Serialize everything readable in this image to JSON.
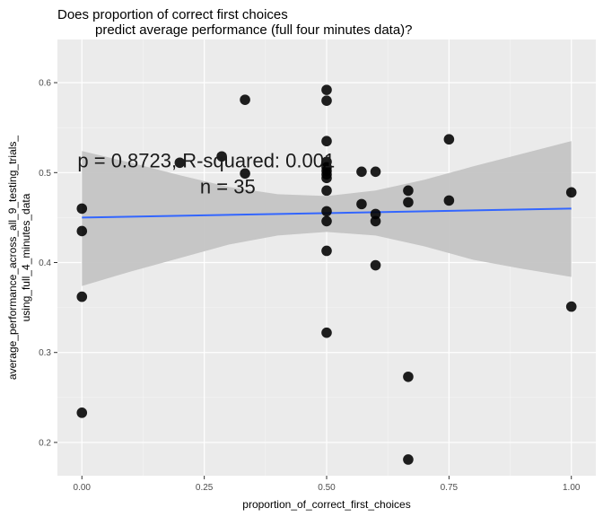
{
  "chart_data": {
    "type": "scatter",
    "title": [
      "Does proportion of correct first choices",
      "predict average performance (full four minutes data)?"
    ],
    "xlabel": "proportion_of_correct_first_choices",
    "ylabel": [
      "average_performance_across_all_9_testing_trials_",
      "using_full_4_minutes_data"
    ],
    "xlim": [
      -0.05,
      1.05
    ],
    "ylim": [
      0.163,
      0.648
    ],
    "x_ticks": [
      0.0,
      0.25,
      0.5,
      0.75,
      1.0
    ],
    "x_tick_labels": [
      "0.00",
      "0.25",
      "0.50",
      "0.75",
      "1.00"
    ],
    "y_ticks": [
      0.2,
      0.3,
      0.4,
      0.5,
      0.6
    ],
    "y_tick_labels": [
      "0.2",
      "0.3",
      "0.4",
      "0.5",
      "0.6"
    ],
    "grid": true,
    "annotations": [
      "p = 0.8723, R-squared:  0.001",
      "n = 35"
    ],
    "points": [
      {
        "x": 0.0,
        "y": 0.46
      },
      {
        "x": 0.0,
        "y": 0.435
      },
      {
        "x": 0.0,
        "y": 0.362
      },
      {
        "x": 0.0,
        "y": 0.233
      },
      {
        "x": 0.2,
        "y": 0.511
      },
      {
        "x": 0.2857,
        "y": 0.518
      },
      {
        "x": 0.3333,
        "y": 0.581
      },
      {
        "x": 0.3333,
        "y": 0.499
      },
      {
        "x": 0.5,
        "y": 0.592
      },
      {
        "x": 0.5,
        "y": 0.58
      },
      {
        "x": 0.5,
        "y": 0.535
      },
      {
        "x": 0.5,
        "y": 0.512
      },
      {
        "x": 0.5,
        "y": 0.506
      },
      {
        "x": 0.5,
        "y": 0.498
      },
      {
        "x": 0.5,
        "y": 0.494
      },
      {
        "x": 0.5,
        "y": 0.48
      },
      {
        "x": 0.5,
        "y": 0.457
      },
      {
        "x": 0.5,
        "y": 0.446
      },
      {
        "x": 0.5,
        "y": 0.413
      },
      {
        "x": 0.5,
        "y": 0.322
      },
      {
        "x": 0.5714,
        "y": 0.501
      },
      {
        "x": 0.5714,
        "y": 0.465
      },
      {
        "x": 0.6,
        "y": 0.501
      },
      {
        "x": 0.6,
        "y": 0.454
      },
      {
        "x": 0.6,
        "y": 0.446
      },
      {
        "x": 0.6,
        "y": 0.397
      },
      {
        "x": 0.6667,
        "y": 0.48
      },
      {
        "x": 0.6667,
        "y": 0.467
      },
      {
        "x": 0.6667,
        "y": 0.273
      },
      {
        "x": 0.6667,
        "y": 0.181
      },
      {
        "x": 0.75,
        "y": 0.537
      },
      {
        "x": 0.75,
        "y": 0.469
      },
      {
        "x": 1.0,
        "y": 0.478
      },
      {
        "x": 1.0,
        "y": 0.351
      },
      {
        "x": 0.5,
        "y": 0.502
      }
    ],
    "fit_line": {
      "x": [
        0.0,
        1.0
      ],
      "y": [
        0.45,
        0.46
      ],
      "color": "#3366ff"
    },
    "confidence_band": {
      "x": [
        0.0,
        0.1,
        0.2,
        0.3,
        0.4,
        0.5,
        0.6,
        0.7,
        0.8,
        0.9,
        1.0
      ],
      "upper": [
        0.524,
        0.511,
        0.497,
        0.484,
        0.476,
        0.474,
        0.48,
        0.492,
        0.507,
        0.521,
        0.535
      ],
      "lower": [
        0.374,
        0.39,
        0.405,
        0.42,
        0.43,
        0.434,
        0.43,
        0.418,
        0.403,
        0.393,
        0.384
      ]
    },
    "colors": {
      "panel": "#ebebeb",
      "grid_major": "#ffffff",
      "band": "#c2c2c2",
      "point": "#000000"
    }
  }
}
